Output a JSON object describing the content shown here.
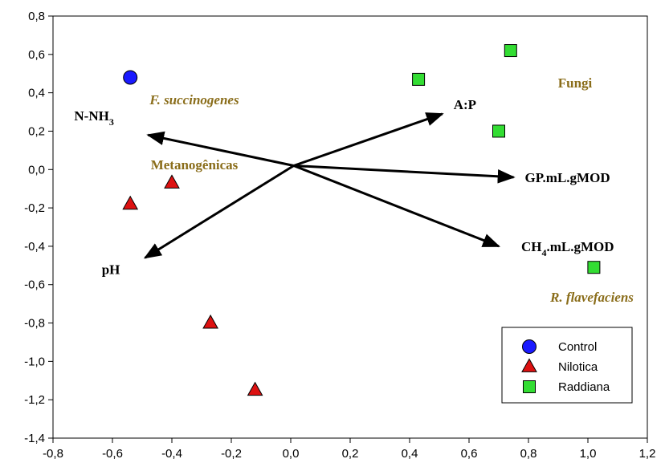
{
  "chart_data": {
    "type": "scatter",
    "xlim": [
      -0.8,
      1.2
    ],
    "ylim": [
      -1.4,
      0.8
    ],
    "x_ticks": [
      "-0,8",
      "-0,6",
      "-0,4",
      "-0,2",
      "0,0",
      "0,2",
      "0,4",
      "0,6",
      "0,8",
      "1,0",
      "1,2"
    ],
    "y_ticks": [
      "0,8",
      "0,6",
      "0,4",
      "0,2",
      "0,0",
      "-0,2",
      "-0,4",
      "-0,6",
      "-0,8",
      "-1,0",
      "-1,2",
      "-1,4"
    ],
    "grid": false,
    "legend_position": "bottom-right",
    "series": [
      {
        "name": "Control",
        "marker": "circle",
        "color": "#1a1aff",
        "points": [
          {
            "x": -0.54,
            "y": 0.48
          }
        ]
      },
      {
        "name": "Nilotica",
        "marker": "triangle",
        "color": "#dd1111",
        "points": [
          {
            "x": -0.54,
            "y": -0.18
          },
          {
            "x": -0.4,
            "y": -0.07
          },
          {
            "x": -0.27,
            "y": -0.8
          },
          {
            "x": -0.12,
            "y": -1.15
          }
        ]
      },
      {
        "name": "Raddiana",
        "marker": "square",
        "color": "#33dd33",
        "points": [
          {
            "x": 0.43,
            "y": 0.47
          },
          {
            "x": 0.74,
            "y": 0.62
          },
          {
            "x": 0.7,
            "y": 0.2
          },
          {
            "x": 1.02,
            "y": -0.51
          }
        ]
      }
    ],
    "vectors": {
      "origin": {
        "x": 0.01,
        "y": 0.02
      },
      "items": [
        {
          "label": "A:P",
          "x": 0.51,
          "y": 0.29
        },
        {
          "label": "N-NH",
          "sub": "3",
          "x": -0.48,
          "y": 0.18
        },
        {
          "label": "GP.mL.gMOD",
          "x": 0.75,
          "y": -0.04
        },
        {
          "label": "CH",
          "sub": "4",
          "suffix": ".mL.gMOD",
          "x": 0.7,
          "y": -0.4
        },
        {
          "label": "pH",
          "x": -0.49,
          "y": -0.46
        }
      ]
    },
    "group_labels": [
      {
        "text": "F. succinogenes",
        "italic": true
      },
      {
        "text": "Fungi",
        "italic": false
      },
      {
        "text": "Metanogênicas",
        "italic": false
      },
      {
        "text": "R. flavefaciens",
        "italic": true
      }
    ]
  },
  "legend": {
    "items": [
      {
        "label": "Control",
        "marker": "circle",
        "color": "#1a1aff"
      },
      {
        "label": "Nilotica",
        "marker": "triangle",
        "color": "#dd1111"
      },
      {
        "label": "Raddiana",
        "marker": "square",
        "color": "#33dd33"
      }
    ]
  }
}
